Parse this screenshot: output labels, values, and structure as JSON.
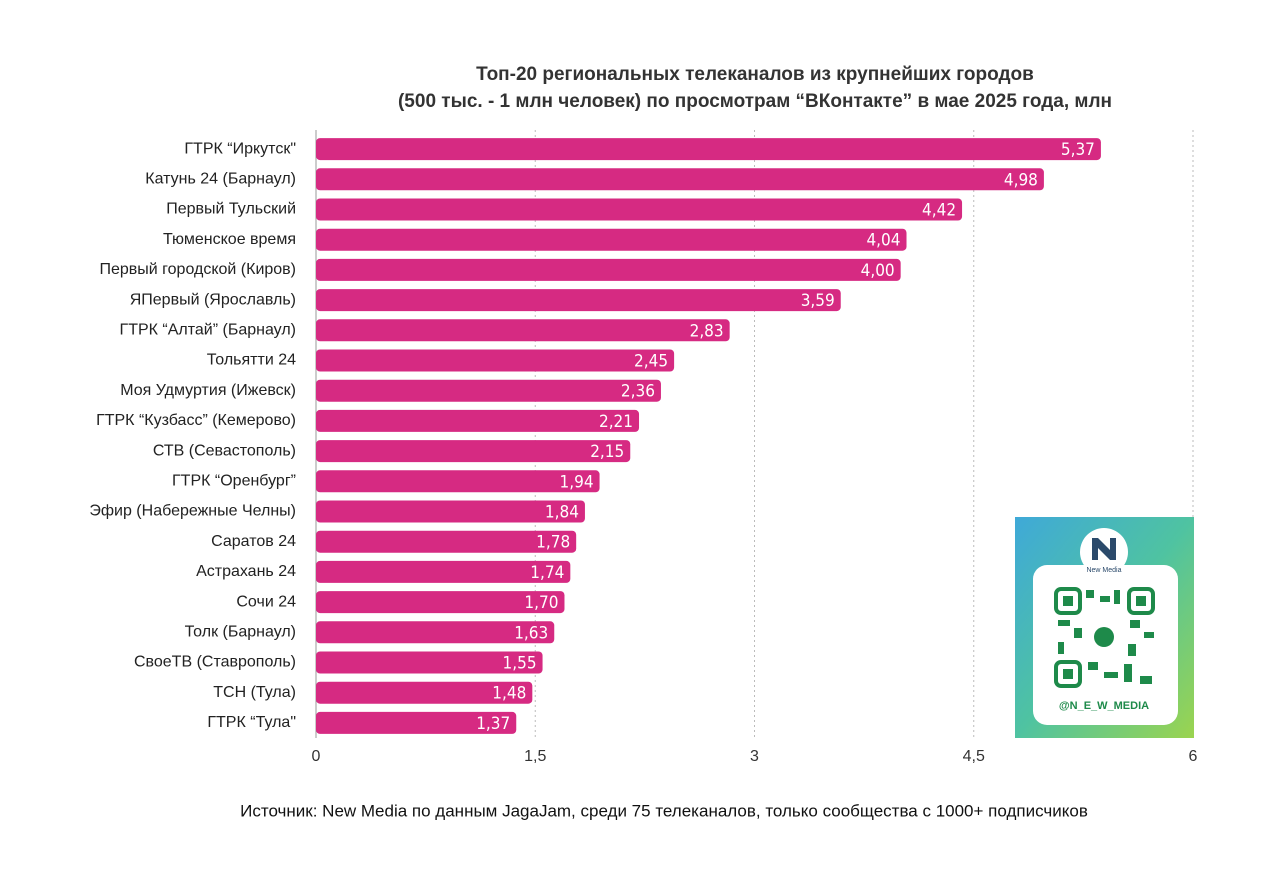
{
  "chart_data": {
    "type": "hbar",
    "title": [
      "Топ-20 региональных телеканалов из крупнейших городов",
      "(500 тыс. - 1 млн человек) по просмотрам “ВКонтакте” в мае 2025 года, млн"
    ],
    "categories": [
      "ГТРК “Иркутск\"",
      "Катунь 24 (Барнаул)",
      "Первый Тульский",
      "Тюменское время",
      "Первый городской (Киров)",
      "ЯПервый (Ярославль)",
      "ГТРК “Алтай” (Барнаул)",
      "Тольятти 24",
      "Моя Удмуртия (Ижевск)",
      "ГТРК “Кузбасс” (Кемерово)",
      "СТВ (Севастополь)",
      "ГТРК “Оренбург”",
      "Эфир (Набережные Челны)",
      "Саратов 24",
      "Астрахань 24",
      "Сочи 24",
      "Толк (Барнаул)",
      "СвоеТВ (Ставрополь)",
      "ТСН (Тула)",
      "ГТРК “Тула\""
    ],
    "values": [
      5.37,
      4.98,
      4.42,
      4.04,
      4.0,
      3.59,
      2.83,
      2.45,
      2.36,
      2.21,
      2.15,
      1.94,
      1.84,
      1.78,
      1.74,
      1.7,
      1.63,
      1.55,
      1.48,
      1.37
    ],
    "value_labels": [
      "5,37",
      "4,98",
      "4,42",
      "4,04",
      "4,00",
      "3,59",
      "2,83",
      "2,45",
      "2,36",
      "2,21",
      "2,15",
      "1,94",
      "1,84",
      "1,78",
      "1,74",
      "1,70",
      "1,63",
      "1,55",
      "1,48",
      "1,37"
    ],
    "color": "#d62a82",
    "xlim": [
      0,
      6
    ],
    "xticks": [
      0,
      {
        "value": 1.5,
        "label": "1,5"
      },
      3,
      {
        "value": 4.5,
        "label": "4,5"
      },
      6
    ],
    "grid": true,
    "source": "Источник: New Media по данным JagaJam, среди 75 телеканалов, только сообщества с 1000+ подписчиков",
    "annotations": [
      "New Media",
      "@N_E_W_MEDIA"
    ]
  }
}
